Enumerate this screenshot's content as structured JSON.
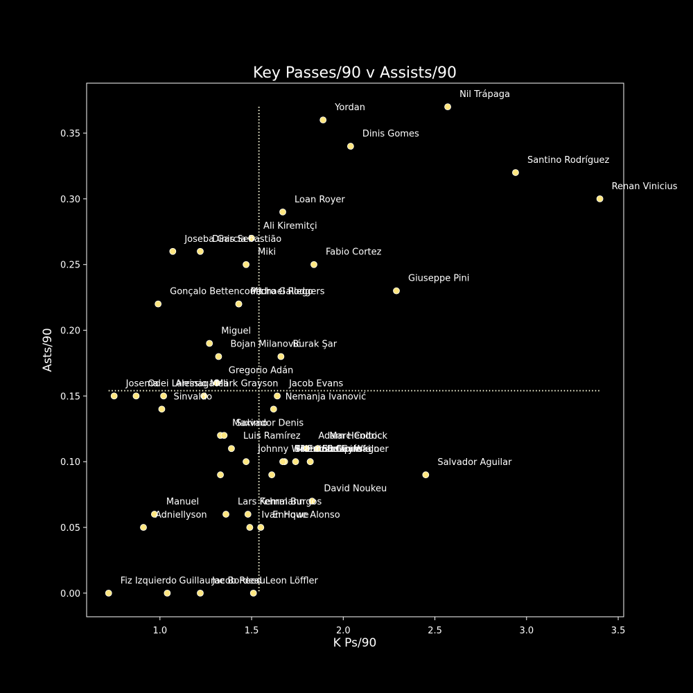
{
  "chart_data": {
    "type": "scatter",
    "title": "Key Passes/90 v Assists/90",
    "xlabel": "K Ps/90",
    "ylabel": "Asts/90",
    "xlim": [
      0.6,
      3.53
    ],
    "ylim": [
      -0.018,
      0.388
    ],
    "xticks": [
      "1.0",
      "1.5",
      "2.0",
      "2.5",
      "3.0",
      "3.5"
    ],
    "yticks": [
      "0.00",
      "0.05",
      "0.10",
      "0.15",
      "0.20",
      "0.25",
      "0.30",
      "0.35"
    ],
    "reference_lines": {
      "x_mean": 1.54,
      "y_mean": 0.154
    },
    "colors": {
      "background": "#000000",
      "point": "#ffe680",
      "point_edge": "#ffffff",
      "reference_line": "#ffffe0",
      "text": "#ffffff"
    },
    "points": [
      {
        "name": "Nil Trápaga",
        "x": 2.57,
        "y": 0.37
      },
      {
        "name": "Yordan",
        "x": 1.89,
        "y": 0.36
      },
      {
        "name": "Dinis Gomes",
        "x": 2.04,
        "y": 0.34
      },
      {
        "name": "Santino Rodríguez",
        "x": 2.94,
        "y": 0.32
      },
      {
        "name": "Renan Vinicius",
        "x": 3.4,
        "y": 0.3
      },
      {
        "name": "Loan Royer",
        "x": 1.67,
        "y": 0.29
      },
      {
        "name": "Ali Kiremitçi",
        "x": 1.5,
        "y": 0.27
      },
      {
        "name": "Joseba Garcia",
        "x": 1.07,
        "y": 0.26
      },
      {
        "name": "Dinis Sebastião",
        "x": 1.22,
        "y": 0.26
      },
      {
        "name": "Miki",
        "x": 1.47,
        "y": 0.25
      },
      {
        "name": "Fabio Cortez",
        "x": 1.84,
        "y": 0.25
      },
      {
        "name": "Giuseppe Pini",
        "x": 2.29,
        "y": 0.23
      },
      {
        "name": "Gonçalo Bettencourt",
        "x": 0.99,
        "y": 0.22
      },
      {
        "name": "Michael Rodgers",
        "x": 1.43,
        "y": 0.22
      },
      {
        "name": "Pedro Gallego",
        "x": 1.43,
        "y": 0.22
      },
      {
        "name": "Miguel",
        "x": 1.27,
        "y": 0.19
      },
      {
        "name": "Bojan Milanović",
        "x": 1.32,
        "y": 0.18
      },
      {
        "name": "Burak Şar",
        "x": 1.66,
        "y": 0.18
      },
      {
        "name": "Gregorio Adán",
        "x": 1.31,
        "y": 0.16
      },
      {
        "name": "Josema",
        "x": 0.75,
        "y": 0.15
      },
      {
        "name": "Odei Larrinaga",
        "x": 0.87,
        "y": 0.15
      },
      {
        "name": "Alessio Meli",
        "x": 1.02,
        "y": 0.15
      },
      {
        "name": "Mark Grayson",
        "x": 1.24,
        "y": 0.15
      },
      {
        "name": "Jacob Evans",
        "x": 1.64,
        "y": 0.15
      },
      {
        "name": "Sinvaldo",
        "x": 1.01,
        "y": 0.14
      },
      {
        "name": "Nemanja Ivanović",
        "x": 1.62,
        "y": 0.14
      },
      {
        "name": "Maximo",
        "x": 1.33,
        "y": 0.12
      },
      {
        "name": "Salvador Denis",
        "x": 1.35,
        "y": 0.12
      },
      {
        "name": "Adam Hendrick",
        "x": 1.8,
        "y": 0.11
      },
      {
        "name": "Marc Coltoc",
        "x": 1.86,
        "y": 0.11
      },
      {
        "name": "Luis Ramírez",
        "x": 1.39,
        "y": 0.11
      },
      {
        "name": "Mateusz Lipiński",
        "x": 1.68,
        "y": 0.1
      },
      {
        "name": "Eric Bell",
        "x": 1.74,
        "y": 0.1
      },
      {
        "name": "Elio Garofalo",
        "x": 1.82,
        "y": 0.1
      },
      {
        "name": "Stefan Wagner",
        "x": 1.82,
        "y": 0.1
      },
      {
        "name": "Johnny Williams",
        "x": 1.47,
        "y": 0.1
      },
      {
        "name": "Brandon Gayle",
        "x": 1.67,
        "y": 0.1
      },
      {
        "name": "Salvador Aguilar",
        "x": 2.45,
        "y": 0.09
      },
      {
        "name": "",
        "x": 1.33,
        "y": 0.09
      },
      {
        "name": "",
        "x": 1.61,
        "y": 0.09
      },
      {
        "name": "David Noukeu",
        "x": 1.83,
        "y": 0.07
      },
      {
        "name": "Manuel",
        "x": 0.97,
        "y": 0.06
      },
      {
        "name": "Adniellyson",
        "x": 0.91,
        "y": 0.05
      },
      {
        "name": "Lars Fehrmann",
        "x": 1.36,
        "y": 0.06
      },
      {
        "name": "Kemal Burgos",
        "x": 1.48,
        "y": 0.06
      },
      {
        "name": "Ivan Howe",
        "x": 1.49,
        "y": 0.05
      },
      {
        "name": "Enrique Alonso",
        "x": 1.55,
        "y": 0.05
      },
      {
        "name": "Fiz Izquierdo",
        "x": 0.72,
        "y": 0.0
      },
      {
        "name": "Guillaume Bordeau",
        "x": 1.04,
        "y": 0.0
      },
      {
        "name": "Jacob Reed",
        "x": 1.22,
        "y": 0.0
      },
      {
        "name": "Leon Löffler",
        "x": 1.51,
        "y": 0.0
      }
    ]
  }
}
